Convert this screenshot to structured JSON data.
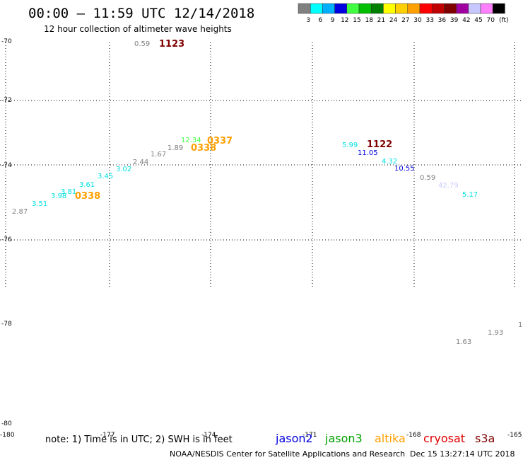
{
  "title": "00:00 – 11:59 UTC 12/14/2018",
  "subtitle": "12 hour collection of altimeter wave heights",
  "legend": {
    "unit": "(ft)",
    "swatches": [
      {
        "color": "#808080",
        "label": "3"
      },
      {
        "color": "#00ffff",
        "label": "6"
      },
      {
        "color": "#00b0ff",
        "label": "9"
      },
      {
        "color": "#0000e0",
        "label": "12"
      },
      {
        "color": "#40ff40",
        "label": "15"
      },
      {
        "color": "#00c000",
        "label": "18"
      },
      {
        "color": "#008000",
        "label": "21"
      },
      {
        "color": "#ffff00",
        "label": "24"
      },
      {
        "color": "#ffd000",
        "label": "27"
      },
      {
        "color": "#ffa000",
        "label": "30"
      },
      {
        "color": "#ff0000",
        "label": "33"
      },
      {
        "color": "#c00000",
        "label": "36"
      },
      {
        "color": "#800000",
        "label": "39"
      },
      {
        "color": "#a000a0",
        "label": "42"
      },
      {
        "color": "#c8c8ff",
        "label": "45"
      },
      {
        "color": "#ff80ff",
        "label": "70"
      },
      {
        "color": "#000000",
        "label": ""
      }
    ]
  },
  "axes": {
    "lat_labels": [
      "-70",
      "-72",
      "-74",
      "-76",
      "-78",
      "-80"
    ],
    "lon_labels": [
      "-180",
      "-177",
      "-174",
      "-171",
      "-168",
      "-165"
    ]
  },
  "observations": [
    {
      "text": "0.59",
      "color": "#808080"
    },
    {
      "text": "2.87",
      "color": "#808080"
    },
    {
      "text": "3.51",
      "color": "#00e0e0"
    },
    {
      "text": "3.98",
      "color": "#00e0e0"
    },
    {
      "text": "3.81",
      "color": "#00e0e0"
    },
    {
      "text": "3.61",
      "color": "#00e0e0"
    },
    {
      "text": "3.45",
      "color": "#00e0e0"
    },
    {
      "text": "3.02",
      "color": "#00e0e0"
    },
    {
      "text": "2.44",
      "color": "#808080"
    },
    {
      "text": "1.67",
      "color": "#808080"
    },
    {
      "text": "1.89",
      "color": "#808080"
    },
    {
      "text": "12.34",
      "color": "#40ff40"
    },
    {
      "text": "5.99",
      "color": "#00e0e0"
    },
    {
      "text": "11.05",
      "color": "#0000e0"
    },
    {
      "text": "4.32",
      "color": "#00e0e0"
    },
    {
      "text": "10.55",
      "color": "#0000e0"
    },
    {
      "text": "0.59",
      "color": "#808080"
    },
    {
      "text": "42.79",
      "color": "#c8c8ff"
    },
    {
      "text": "5.17",
      "color": "#00e0e0"
    },
    {
      "text": "1.63",
      "color": "#808080"
    },
    {
      "text": "1.93",
      "color": "#808080"
    },
    {
      "text": "1",
      "color": "#808080"
    }
  ],
  "time_labels": [
    {
      "text": "1123",
      "color": "#800000"
    },
    {
      "text": "0337",
      "color": "#ffa000"
    },
    {
      "text": "0338",
      "color": "#ffa000"
    },
    {
      "text": "0338",
      "color": "#ffa000"
    },
    {
      "text": "1122",
      "color": "#800000"
    }
  ],
  "note": "note: 1) Time is in UTC; 2) SWH is in feet",
  "satellites": [
    {
      "name": "jason2",
      "color": "#0000e0"
    },
    {
      "name": "jason3",
      "color": "#00a000"
    },
    {
      "name": "altika",
      "color": "#ffa000"
    },
    {
      "name": "cryosat",
      "color": "#e00000"
    },
    {
      "name": "s3a",
      "color": "#800000"
    }
  ],
  "credit": "NOAA/NESDIS Center for Satellite Applications and Research",
  "generated": "Dec 15 13:27:14 UTC 2018"
}
